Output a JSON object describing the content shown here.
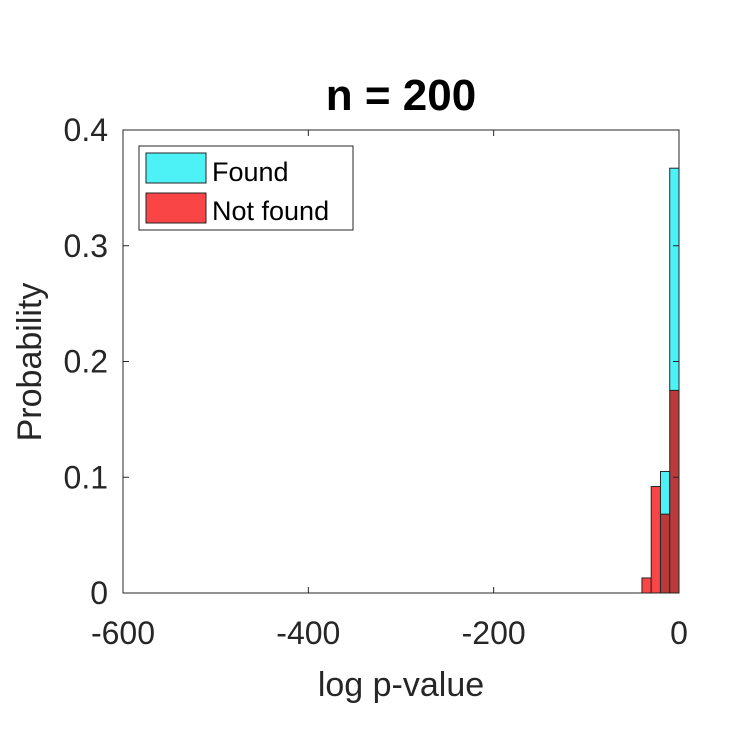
{
  "chart_data": {
    "type": "bar",
    "title": "n = 200",
    "xlabel": "log p-value",
    "ylabel": "Probability",
    "xlim": [
      -600,
      0
    ],
    "ylim": [
      0,
      0.4
    ],
    "xticks": [
      -600,
      -400,
      -200,
      0
    ],
    "xtick_labels": [
      "-600",
      "-400",
      "-200",
      "0"
    ],
    "yticks": [
      0,
      0.1,
      0.2,
      0.3,
      0.4
    ],
    "ytick_labels": [
      "0",
      "0.1",
      "0.2",
      "0.3",
      "0.4"
    ],
    "grid": false,
    "legend_position": "top-left",
    "bin_edges": [
      -40,
      -30,
      -20,
      -10,
      0
    ],
    "series": [
      {
        "name": "Found",
        "color": "#4df2f7",
        "values": [
          0.0,
          0.0,
          0.105,
          0.367
        ]
      },
      {
        "name": "Not found",
        "color": "#f94545",
        "values": [
          0.013,
          0.092,
          0.068,
          0.175
        ]
      }
    ],
    "overlap_color": "#b83a3a"
  }
}
